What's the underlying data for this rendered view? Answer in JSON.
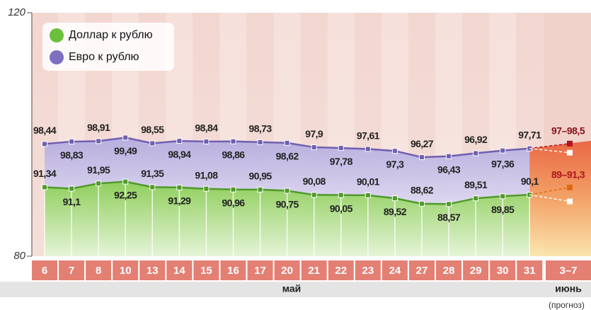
{
  "chart_data": {
    "type": "line",
    "categories": [
      "6",
      "7",
      "8",
      "10",
      "13",
      "14",
      "15",
      "16",
      "17",
      "20",
      "21",
      "22",
      "23",
      "24",
      "27",
      "28",
      "29",
      "30",
      "31"
    ],
    "forecast_category": "3–7",
    "months": [
      "май",
      "июнь"
    ],
    "forecast_note": "(прогноз)",
    "ylim": [
      80,
      120
    ],
    "yticks": [
      80,
      120
    ],
    "series": [
      {
        "name": "Евро к рублю",
        "color": "#6f5fb0",
        "values": [
          98.44,
          98.83,
          98.91,
          99.49,
          98.55,
          98.94,
          98.84,
          98.86,
          98.73,
          98.62,
          97.9,
          97.78,
          97.61,
          97.3,
          96.27,
          96.43,
          96.92,
          97.36,
          97.71
        ],
        "value_labels": [
          "98,44",
          "98,83",
          "98,91",
          "99,49",
          "98,55",
          "98,94",
          "98,84",
          "98,86",
          "98,73",
          "98,62",
          "97,9",
          "97,78",
          "97,61",
          "97,3",
          "96,27",
          "96,43",
          "96,92",
          "97,36",
          "97,71"
        ],
        "forecast": {
          "low": 97,
          "high": 98.5,
          "label": "97–98,5"
        }
      },
      {
        "name": "Доллар к рублю",
        "color": "#4f9a2a",
        "values": [
          91.34,
          91.1,
          91.95,
          92.25,
          91.35,
          91.29,
          91.08,
          90.96,
          90.95,
          90.75,
          90.08,
          90.05,
          90.01,
          89.52,
          88.62,
          88.57,
          89.51,
          89.85,
          90.1
        ],
        "value_labels": [
          "91,34",
          "91,1",
          "91,95",
          "92,25",
          "91,35",
          "91,29",
          "91,08",
          "90,96",
          "90,95",
          "90,75",
          "90,08",
          "90,05",
          "90,01",
          "89,52",
          "88,62",
          "88,57",
          "89,51",
          "89,85",
          "90,1"
        ],
        "forecast": {
          "low": 89,
          "high": 91.3,
          "label": "89–91,3"
        }
      }
    ]
  }
}
